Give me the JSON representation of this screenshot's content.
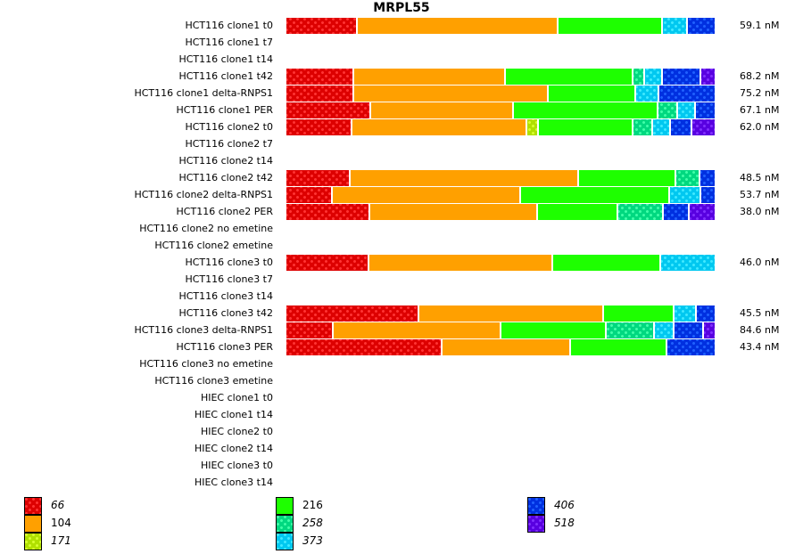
{
  "chart_data": {
    "type": "bar",
    "orientation": "horizontal-stacked-100",
    "title": "MRPL55",
    "xlabel": "",
    "ylabel": "",
    "value_unit": "percent of bar",
    "legend_placement": "bottom",
    "categories": [
      "HCT116 clone1 t0",
      "HCT116 clone1 t7",
      "HCT116 clone1 t14",
      "HCT116 clone1 t42",
      "HCT116 clone1 delta-RNPS1",
      "HCT116 clone1 PER",
      "HCT116 clone2 t0",
      "HCT116 clone2 t7",
      "HCT116 clone2 t14",
      "HCT116 clone2 t42",
      "HCT116 clone2 delta-RNPS1",
      "HCT116 clone2 PER",
      "HCT116 clone2 no emetine",
      "HCT116 clone2 emetine",
      "HCT116 clone3 t0",
      "HCT116 clone3 t7",
      "HCT116 clone3 t14",
      "HCT116 clone3 t42",
      "HCT116 clone3 delta-RNPS1",
      "HCT116 clone3 PER",
      "HCT116 clone3 no emetine",
      "HCT116 clone3 emetine",
      "HIEC clone1 t0",
      "HIEC clone1 t14",
      "HIEC clone2 t0",
      "HIEC clone2 t14",
      "HIEC clone3 t0",
      "HIEC clone3 t14"
    ],
    "row_totals": [
      "59.1 nM",
      "",
      "",
      "68.2 nM",
      "75.2 nM",
      "67.1 nM",
      "62.0 nM",
      "",
      "",
      "48.5 nM",
      "53.7 nM",
      "38.0 nM",
      "",
      "",
      "46.0 nM",
      "",
      "",
      "45.5 nM",
      "84.6 nM",
      "43.4 nM",
      "",
      "",
      "",
      "",
      "",
      "",
      "",
      ""
    ],
    "series": [
      {
        "name": "66",
        "italic": true,
        "patterned": true,
        "color": "#dd0000",
        "dot": "#ff3333",
        "values": [
          16.7,
          0,
          0,
          15.8,
          15.8,
          19.8,
          15.4,
          0,
          0,
          15.0,
          10.8,
          19.6,
          0,
          0,
          19.4,
          0,
          0,
          31.0,
          11.0,
          36.5,
          0,
          0,
          0,
          0,
          0,
          0,
          0,
          0
        ]
      },
      {
        "name": "104",
        "italic": false,
        "patterned": false,
        "color": "#ffa000",
        "dot": "#ffa000",
        "values": [
          46.9,
          0,
          0,
          35.4,
          45.4,
          33.3,
          40.8,
          0,
          0,
          53.3,
          44.0,
          39.2,
          0,
          0,
          42.9,
          0,
          0,
          43.1,
          39.2,
          30.0,
          0,
          0,
          0,
          0,
          0,
          0,
          0,
          0
        ]
      },
      {
        "name": "171",
        "italic": true,
        "patterned": true,
        "color": "#b0e000",
        "dot": "#d8ff30",
        "values": [
          0,
          0,
          0,
          0,
          0,
          0,
          2.7,
          0,
          0,
          0,
          0,
          0,
          0,
          0,
          0,
          0,
          0,
          0,
          0,
          0,
          0,
          0,
          0,
          0,
          0,
          0,
          0,
          0
        ]
      },
      {
        "name": "216",
        "italic": false,
        "patterned": false,
        "color": "#1eff00",
        "dot": "#1eff00",
        "values": [
          24.4,
          0,
          0,
          29.8,
          20.4,
          33.8,
          22.1,
          0,
          0,
          22.7,
          34.8,
          18.8,
          0,
          0,
          25.2,
          0,
          0,
          16.5,
          24.6,
          22.5,
          0,
          0,
          0,
          0,
          0,
          0,
          0,
          0
        ]
      },
      {
        "name": "258",
        "italic": true,
        "patterned": true,
        "color": "#00d880",
        "dot": "#40ffa8",
        "values": [
          0,
          0,
          0,
          2.7,
          0,
          4.6,
          4.6,
          0,
          0,
          5.6,
          0,
          10.6,
          0,
          0,
          0,
          0,
          0,
          0,
          11.3,
          0,
          0,
          0,
          0,
          0,
          0,
          0,
          0,
          0
        ]
      },
      {
        "name": "373",
        "italic": true,
        "patterned": true,
        "color": "#00c8f0",
        "dot": "#40e8ff",
        "values": [
          5.8,
          0,
          0,
          4.2,
          5.4,
          4.2,
          4.2,
          0,
          0,
          0,
          7.3,
          0,
          0,
          0,
          12.5,
          0,
          0,
          5.2,
          4.6,
          0,
          0,
          0,
          0,
          0,
          0,
          0,
          0,
          0
        ]
      },
      {
        "name": "406",
        "italic": true,
        "patterned": true,
        "color": "#0030e0",
        "dot": "#2060ff",
        "values": [
          6.3,
          0,
          0,
          9.0,
          12.9,
          4.4,
          5.0,
          0,
          0,
          3.3,
          3.1,
          6.0,
          0,
          0,
          0,
          0,
          0,
          4.2,
          6.9,
          11.0,
          0,
          0,
          0,
          0,
          0,
          0,
          0,
          0
        ]
      },
      {
        "name": "518",
        "italic": true,
        "patterned": true,
        "color": "#5800e0",
        "dot": "#8030ff",
        "values": [
          0,
          0,
          0,
          3.1,
          0,
          0,
          5.2,
          0,
          0,
          0,
          0,
          5.8,
          0,
          0,
          0,
          0,
          0,
          0,
          2.5,
          0,
          0,
          0,
          0,
          0,
          0,
          0,
          0,
          0
        ]
      }
    ]
  }
}
